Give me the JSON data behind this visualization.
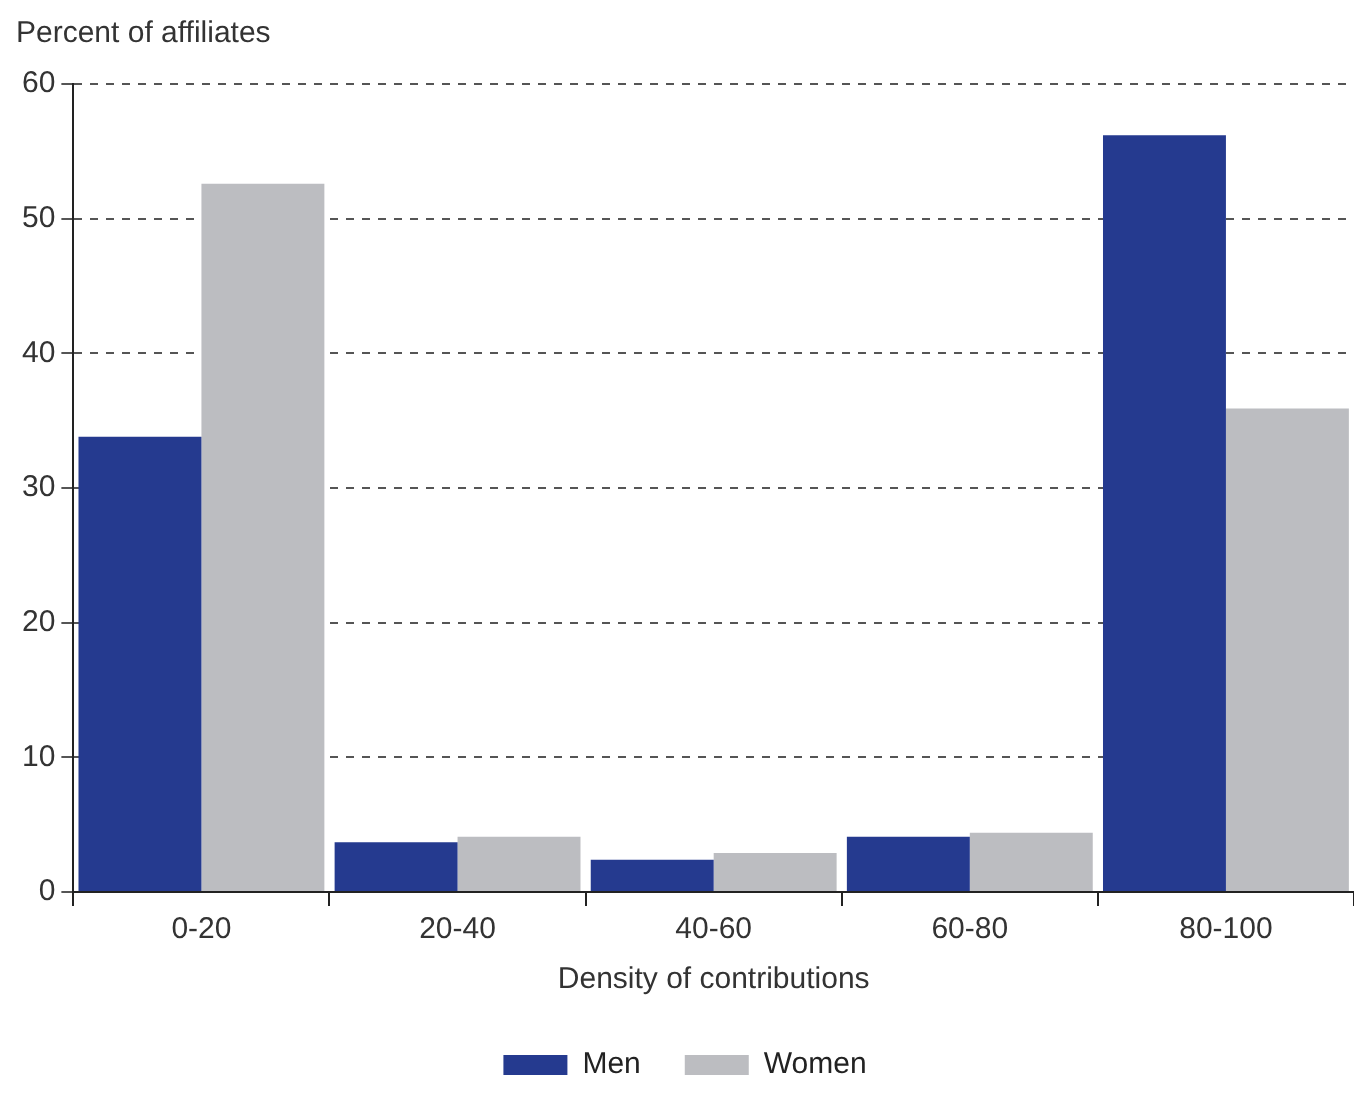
{
  "chart_data": {
    "type": "bar",
    "ylabel": "Percent of affiliates",
    "xlabel": "Density of contributions",
    "categories": [
      "0-20",
      "20-40",
      "40-60",
      "60-80",
      "80-100"
    ],
    "series": [
      {
        "name": "Men",
        "color": "#253a8f",
        "values": [
          33.8,
          3.7,
          2.4,
          4.1,
          56.2
        ]
      },
      {
        "name": "Women",
        "color": "#bcbdc1",
        "values": [
          52.6,
          4.1,
          2.9,
          4.4,
          35.9
        ]
      }
    ],
    "ylim": [
      0,
      60
    ],
    "yticks": [
      0,
      10,
      20,
      30,
      40,
      50,
      60
    ],
    "grid": "y",
    "legend": "bottom"
  }
}
